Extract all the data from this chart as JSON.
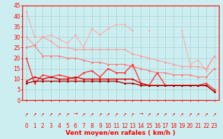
{
  "x": [
    0,
    1,
    2,
    3,
    4,
    5,
    6,
    7,
    8,
    9,
    10,
    11,
    12,
    13,
    14,
    15,
    16,
    17,
    18,
    19,
    20,
    21,
    22,
    23
  ],
  "series": [
    {
      "name": "line1_lightest",
      "color": "#ffaaaa",
      "linewidth": 0.8,
      "markersize": 2.0,
      "y": [
        42,
        30,
        30,
        31,
        29,
        27,
        31,
        25,
        34,
        31,
        34,
        36,
        36,
        33,
        null,
        33,
        null,
        null,
        null,
        33,
        17,
        19,
        14,
        21
      ]
    },
    {
      "name": "line2_light",
      "color": "#ff9999",
      "linewidth": 0.8,
      "markersize": 2.0,
      "y": [
        30,
        26,
        30,
        28,
        25,
        25,
        24,
        24,
        24,
        24,
        24,
        24,
        24,
        22,
        21,
        20,
        19,
        18,
        17,
        16,
        16,
        16,
        15,
        21
      ]
    },
    {
      "name": "line3_medium",
      "color": "#ff7777",
      "linewidth": 0.8,
      "markersize": 2.0,
      "y": [
        25,
        26,
        21,
        21,
        21,
        20,
        20,
        19,
        18,
        18,
        17,
        17,
        17,
        16,
        15,
        14,
        13,
        13,
        12,
        12,
        12,
        11,
        11,
        15
      ]
    },
    {
      "name": "line4_medium2",
      "color": "#ff3333",
      "linewidth": 1.0,
      "markersize": 2.0,
      "y": [
        20,
        8,
        12,
        11,
        12,
        11,
        10,
        13,
        14,
        11,
        15,
        13,
        13,
        17,
        8,
        7,
        13,
        7,
        7,
        7,
        7,
        7,
        8,
        5
      ]
    },
    {
      "name": "line5_dark1",
      "color": "#dd0000",
      "linewidth": 1.0,
      "markersize": 2.0,
      "y": [
        9,
        11,
        10,
        11,
        10,
        10,
        11,
        10,
        10,
        10,
        10,
        10,
        10,
        10,
        8,
        7,
        7,
        7,
        7,
        7,
        7,
        7,
        7,
        4
      ]
    },
    {
      "name": "line6_dark2",
      "color": "#aa0000",
      "linewidth": 1.0,
      "markersize": 2.0,
      "y": [
        8,
        9,
        9,
        9,
        9,
        9,
        9,
        9,
        9,
        9,
        9,
        9,
        8,
        8,
        7,
        7,
        7,
        7,
        7,
        7,
        7,
        7,
        7,
        4
      ]
    }
  ],
  "arrow_angles": [
    45,
    45,
    45,
    45,
    45,
    45,
    0,
    45,
    45,
    45,
    45,
    45,
    45,
    45,
    0,
    45,
    45,
    45,
    45,
    45,
    45,
    45,
    45,
    45
  ],
  "xlabel": "Vent moyen/en rafales ( km/h )",
  "ylim": [
    0,
    45
  ],
  "yticks": [
    0,
    5,
    10,
    15,
    20,
    25,
    30,
    35,
    40,
    45
  ],
  "xlim": [
    -0.5,
    23.5
  ],
  "xticks": [
    0,
    1,
    2,
    3,
    4,
    5,
    6,
    7,
    8,
    9,
    10,
    11,
    12,
    13,
    14,
    15,
    16,
    17,
    18,
    19,
    20,
    21,
    22,
    23
  ],
  "bg_color": "#cceef0",
  "grid_color": "#99cccc",
  "axis_color": "#ff0000",
  "xlabel_fontsize": 6.5,
  "tick_fontsize": 5.5,
  "arrow_fontsize": 5.0
}
